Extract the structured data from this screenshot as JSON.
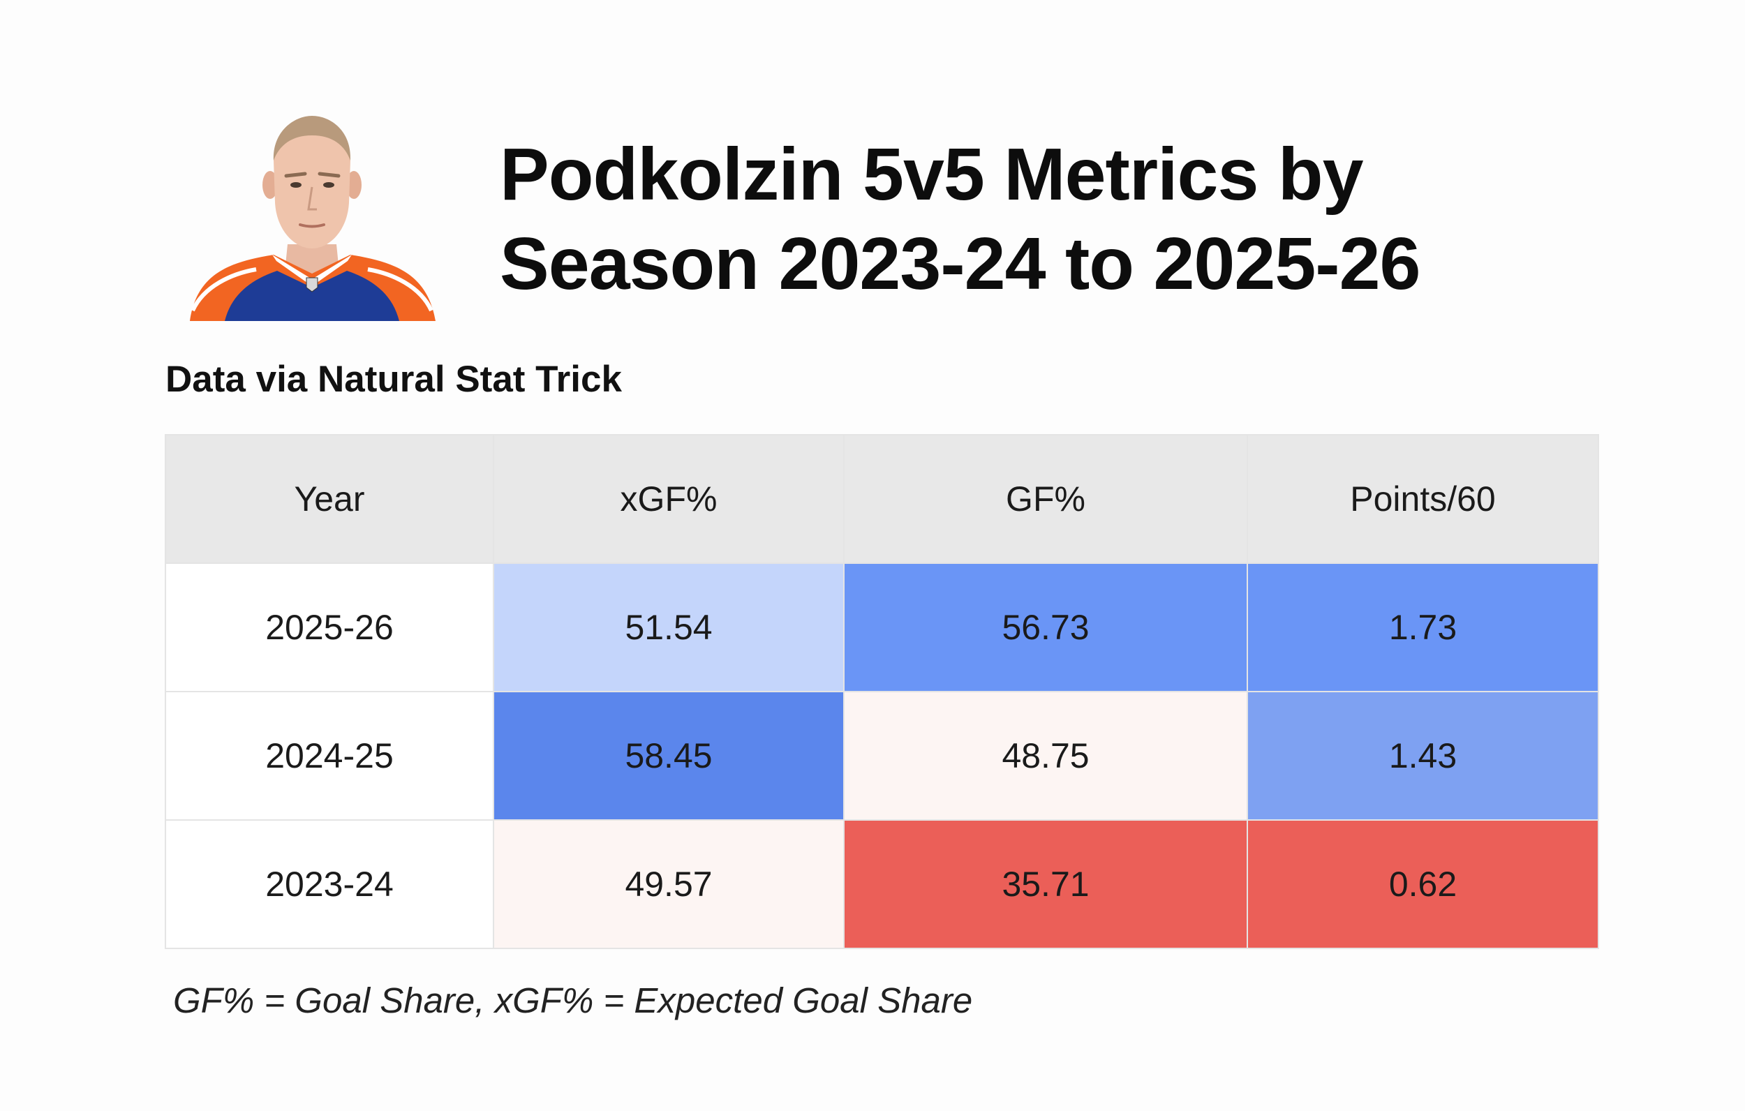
{
  "header": {
    "title_line1": "Podkolzin 5v5 Metrics by",
    "title_line2": "Season 2023-24 to 2025-26",
    "subtitle": "Data via Natural Stat Trick"
  },
  "chart_data": {
    "type": "table",
    "columns": [
      "Year",
      "xGF%",
      "GF%",
      "Points/60"
    ],
    "rows": [
      {
        "year": "2025-26",
        "values": [
          "51.54",
          "56.73",
          "1.73"
        ],
        "colors": [
          "#c4d5fb",
          "#6a95f6",
          "#6a95f6"
        ]
      },
      {
        "year": "2024-25",
        "values": [
          "58.45",
          "48.75",
          "1.43"
        ],
        "colors": [
          "#5b86ec",
          "#fdf5f3",
          "#7ea1f2"
        ]
      },
      {
        "year": "2023-24",
        "values": [
          "49.57",
          "35.71",
          "0.62"
        ],
        "colors": [
          "#fdf5f3",
          "#eb5f58",
          "#eb5f58"
        ]
      }
    ]
  },
  "footnote": "GF% = Goal Share, xGF% = Expected Goal Share",
  "colors": {
    "header_bg": "#e8e8e8",
    "jersey_orange": "#f26522",
    "jersey_blue": "#1e3c96"
  }
}
